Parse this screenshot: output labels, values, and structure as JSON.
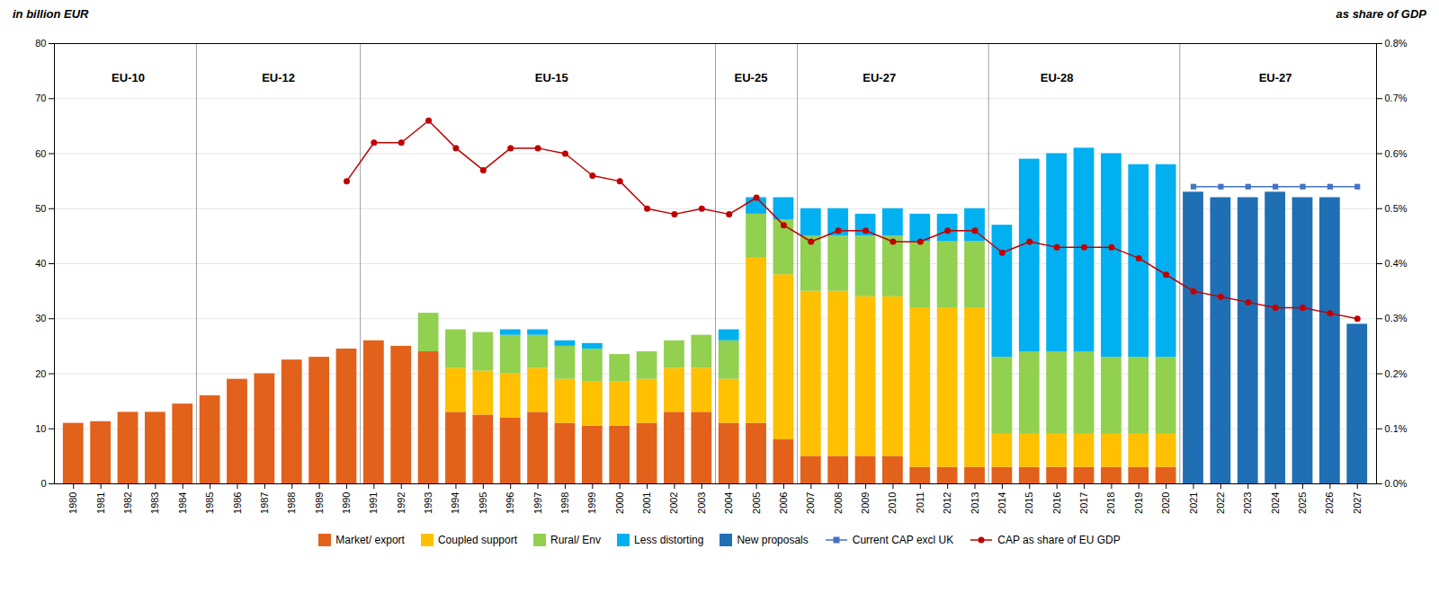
{
  "chart_data": {
    "type": "bar",
    "stacked": true,
    "grid": true,
    "legend": "bottom",
    "ylabel": "in billion EUR",
    "y2label": "as share of  GDP",
    "x": [
      1980,
      1981,
      1982,
      1983,
      1984,
      1985,
      1986,
      1987,
      1988,
      1989,
      1990,
      1991,
      1992,
      1993,
      1994,
      1995,
      1996,
      1997,
      1998,
      1999,
      2000,
      2001,
      2002,
      2003,
      2004,
      2005,
      2006,
      2007,
      2008,
      2009,
      2010,
      2011,
      2012,
      2013,
      2014,
      2015,
      2016,
      2017,
      2018,
      2019,
      2020,
      2021,
      2022,
      2023,
      2024,
      2025,
      2026,
      2027
    ],
    "xlim": [
      1979.3,
      2027.7
    ],
    "xticks": [
      1980,
      1981,
      1982,
      1983,
      1984,
      1985,
      1986,
      1987,
      1988,
      1989,
      1990,
      1991,
      1992,
      1993,
      1994,
      1995,
      1996,
      1997,
      1998,
      1999,
      2000,
      2001,
      2002,
      2003,
      2004,
      2005,
      2006,
      2007,
      2008,
      2009,
      2010,
      2011,
      2012,
      2013,
      2014,
      2015,
      2016,
      2017,
      2018,
      2019,
      2020,
      2021,
      2022,
      2023,
      2024,
      2025,
      2026,
      2027
    ],
    "ylim": [
      0,
      80
    ],
    "yticks": [
      0,
      10,
      20,
      30,
      40,
      50,
      60,
      70,
      80
    ],
    "y2lim": [
      0,
      0.008
    ],
    "y2ticks": [
      {
        "value": 0,
        "label": "0.0%"
      },
      {
        "value": 0.001,
        "label": "0.1%"
      },
      {
        "value": 0.002,
        "label": "0.2%"
      },
      {
        "value": 0.003,
        "label": "0.3%"
      },
      {
        "value": 0.004,
        "label": "0.4%"
      },
      {
        "value": 0.005,
        "label": "0.5%"
      },
      {
        "value": 0.006,
        "label": "0.6%"
      },
      {
        "value": 0.007,
        "label": "0.7%"
      },
      {
        "value": 0.008,
        "label": "0.8%"
      }
    ],
    "series": [
      {
        "name": "Market/ export",
        "type": "bar",
        "color": "#E2611B",
        "values": [
          11,
          11.3,
          13,
          13,
          14.5,
          16,
          19,
          20,
          22.5,
          23,
          24.5,
          26,
          25,
          24,
          13,
          12.5,
          12,
          13,
          11,
          10.5,
          10.5,
          11,
          13,
          13,
          11,
          11,
          8,
          5,
          5,
          5,
          5,
          3,
          3,
          3,
          3,
          3,
          3,
          3,
          3,
          3,
          3,
          0,
          0,
          0,
          0,
          0,
          0,
          0
        ]
      },
      {
        "name": "Coupled support",
        "type": "bar",
        "color": "#FFC000",
        "values": [
          0,
          0,
          0,
          0,
          0,
          0,
          0,
          0,
          0,
          0,
          0,
          0,
          0,
          0,
          8,
          8,
          8,
          8,
          8,
          8,
          8,
          8,
          8,
          8,
          8,
          30,
          30,
          30,
          30,
          29,
          29,
          29,
          29,
          29,
          6,
          6,
          6,
          6,
          6,
          6,
          6,
          0,
          0,
          0,
          0,
          0,
          0,
          0
        ]
      },
      {
        "name": "Rural/ Env",
        "type": "bar",
        "color": "#92D050",
        "values": [
          0,
          0,
          0,
          0,
          0,
          0,
          0,
          0,
          0,
          0,
          0,
          0,
          0,
          7,
          7,
          7,
          7,
          6,
          6,
          6,
          5,
          5,
          5,
          6,
          7,
          8,
          10,
          10,
          10,
          11,
          11,
          12,
          12,
          12,
          14,
          15,
          15,
          15,
          14,
          14,
          14,
          0,
          0,
          0,
          0,
          0,
          0,
          0
        ]
      },
      {
        "name": "Less distorting",
        "type": "bar",
        "color": "#00B0F0",
        "values": [
          0,
          0,
          0,
          0,
          0,
          0,
          0,
          0,
          0,
          0,
          0,
          0,
          0,
          0,
          0,
          0,
          1,
          1,
          1,
          1,
          0,
          0,
          0,
          0,
          2,
          3,
          4,
          5,
          5,
          4,
          5,
          5,
          5,
          6,
          24,
          35,
          36,
          37,
          37,
          35,
          35,
          0,
          0,
          0,
          0,
          0,
          0,
          0
        ]
      },
      {
        "name": "New proposals",
        "type": "bar",
        "color": "#1F6FB4",
        "values": [
          0,
          0,
          0,
          0,
          0,
          0,
          0,
          0,
          0,
          0,
          0,
          0,
          0,
          0,
          0,
          0,
          0,
          0,
          0,
          0,
          0,
          0,
          0,
          0,
          0,
          0,
          0,
          0,
          0,
          0,
          0,
          0,
          0,
          0,
          0,
          0,
          0,
          0,
          0,
          0,
          0,
          53,
          52,
          52,
          53,
          52,
          52,
          29
        ]
      },
      {
        "name": "Current CAP excl UK",
        "type": "line",
        "axis": "y2",
        "color": "#4472C4",
        "marker": "square",
        "line_style": "solid",
        "values": [
          null,
          null,
          null,
          null,
          null,
          null,
          null,
          null,
          null,
          null,
          null,
          null,
          null,
          null,
          null,
          null,
          null,
          null,
          null,
          null,
          null,
          null,
          null,
          null,
          null,
          null,
          null,
          null,
          null,
          null,
          null,
          null,
          null,
          null,
          null,
          null,
          null,
          null,
          null,
          null,
          null,
          0.0054,
          0.0054,
          0.0054,
          0.0054,
          0.0054,
          0.0054,
          0.0054
        ]
      },
      {
        "name": "CAP as share of EU GDP",
        "type": "line",
        "axis": "y2",
        "color": "#C00000",
        "marker": "circle",
        "line_style": "solid",
        "values": [
          null,
          null,
          null,
          null,
          null,
          null,
          null,
          null,
          null,
          null,
          0.0055,
          0.0062,
          0.0062,
          0.0066,
          0.0061,
          0.0057,
          0.0061,
          0.0061,
          0.006,
          0.0056,
          0.0055,
          0.005,
          0.0049,
          0.005,
          0.0049,
          0.0052,
          0.0047,
          0.0044,
          0.0046,
          0.0046,
          0.0044,
          0.0044,
          0.0046,
          0.0046,
          0.0042,
          0.0044,
          0.0043,
          0.0043,
          0.0043,
          0.0041,
          0.0038,
          0.0035,
          0.0034,
          0.0033,
          0.0032,
          0.0032,
          0.0031,
          0.003
        ]
      }
    ],
    "annotations": [
      {
        "text": "EU-10",
        "x": 1982.0,
        "y": 73
      },
      {
        "text": "EU-12",
        "x": 1987.5,
        "y": 73
      },
      {
        "text": "EU-15",
        "x": 1997.5,
        "y": 73
      },
      {
        "text": "EU-25",
        "x": 2004.8,
        "y": 73
      },
      {
        "text": "EU-27",
        "x": 2009.5,
        "y": 73
      },
      {
        "text": "EU-28",
        "x": 2016.0,
        "y": 73
      },
      {
        "text": "EU-27",
        "x": 2024.0,
        "y": 73
      }
    ],
    "vlines": [
      1984.5,
      1990.5,
      2003.5,
      2006.5,
      2013.5,
      2020.5
    ]
  }
}
